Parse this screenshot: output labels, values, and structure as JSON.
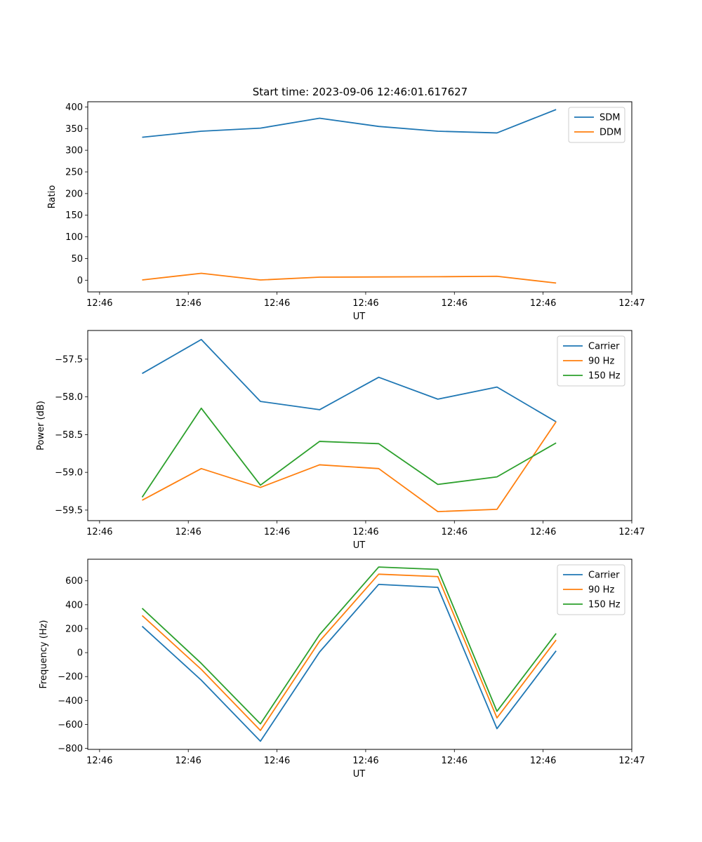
{
  "title": "Start time: 2023-09-06 12:46:01.617627",
  "chart_data": [
    {
      "type": "line",
      "xlabel": "UT",
      "ylabel": "Ratio",
      "x_index_range": [
        -0.2,
        9.0
      ],
      "x_ticks": [
        0,
        1.5,
        3,
        4.5,
        6,
        7.5,
        9
      ],
      "x_tick_labels": [
        "12:46",
        "12:46",
        "12:46",
        "12:46",
        "12:46",
        "12:46",
        "12:47"
      ],
      "ylim": [
        -27,
        412
      ],
      "y_ticks": [
        0,
        50,
        100,
        150,
        200,
        250,
        300,
        350,
        400
      ],
      "y_tick_labels": [
        "0",
        "50",
        "100",
        "150",
        "200",
        "250",
        "300",
        "350",
        "400"
      ],
      "legend_position": "upper-right",
      "series": [
        {
          "name": "SDM",
          "color": "#1f77b4",
          "x": [
            0.72,
            1.72,
            2.72,
            3.72,
            4.72,
            5.72,
            6.72,
            7.72
          ],
          "values": [
            330,
            344,
            351,
            374,
            355,
            344,
            340,
            394
          ]
        },
        {
          "name": "DDM",
          "color": "#ff7f0e",
          "x": [
            0.72,
            1.72,
            2.72,
            3.72,
            4.72,
            5.72,
            6.72,
            7.72
          ],
          "values": [
            0.5,
            16,
            0.5,
            7,
            7.5,
            8,
            9,
            -6.5
          ]
        }
      ]
    },
    {
      "type": "line",
      "xlabel": "UT",
      "ylabel": "Power (dB)",
      "x_index_range": [
        -0.2,
        9.0
      ],
      "x_ticks": [
        0,
        1.5,
        3,
        4.5,
        6,
        7.5,
        9
      ],
      "x_tick_labels": [
        "12:46",
        "12:46",
        "12:46",
        "12:46",
        "12:46",
        "12:46",
        "12:47"
      ],
      "ylim": [
        -59.64,
        -57.12
      ],
      "y_ticks": [
        -57.5,
        -58.0,
        -58.5,
        -59.0,
        -59.5
      ],
      "y_tick_labels": [
        "−57.5",
        "−58.0",
        "−58.5",
        "−59.0",
        "−59.5"
      ],
      "legend_position": "upper-right",
      "series": [
        {
          "name": "Carrier",
          "color": "#1f77b4",
          "x": [
            0.72,
            1.72,
            2.72,
            3.72,
            4.72,
            5.72,
            6.72,
            7.72
          ],
          "values": [
            -57.69,
            -57.24,
            -58.06,
            -58.17,
            -57.74,
            -58.03,
            -57.87,
            -58.33
          ]
        },
        {
          "name": "90 Hz",
          "color": "#ff7f0e",
          "x": [
            0.72,
            1.72,
            2.72,
            3.72,
            4.72,
            5.72,
            6.72,
            7.72
          ],
          "values": [
            -59.37,
            -58.95,
            -59.2,
            -58.9,
            -58.95,
            -59.52,
            -59.49,
            -58.33
          ]
        },
        {
          "name": "150 Hz",
          "color": "#2ca02c",
          "x": [
            0.72,
            1.72,
            2.72,
            3.72,
            4.72,
            5.72,
            6.72,
            7.72
          ],
          "values": [
            -59.33,
            -58.15,
            -59.17,
            -58.59,
            -58.62,
            -59.16,
            -59.06,
            -58.61
          ]
        }
      ]
    },
    {
      "type": "line",
      "xlabel": "UT",
      "ylabel": "Frequency (Hz)",
      "x_index_range": [
        -0.2,
        9.0
      ],
      "x_ticks": [
        0,
        1.5,
        3,
        4.5,
        6,
        7.5,
        9
      ],
      "x_tick_labels": [
        "12:46",
        "12:46",
        "12:46",
        "12:46",
        "12:46",
        "12:46",
        "12:47"
      ],
      "ylim": [
        -808,
        780
      ],
      "y_ticks": [
        600,
        400,
        200,
        0,
        -200,
        -400,
        -600,
        -800
      ],
      "y_tick_labels": [
        "600",
        "400",
        "200",
        "0",
        "−200",
        "−400",
        "−600",
        "−800"
      ],
      "legend_position": "upper-right",
      "series": [
        {
          "name": "Carrier",
          "color": "#1f77b4",
          "x": [
            0.72,
            1.72,
            2.72,
            3.72,
            4.72,
            5.72,
            6.72,
            7.72
          ],
          "values": [
            220,
            -230,
            -740,
            5,
            570,
            545,
            -635,
            15
          ]
        },
        {
          "name": "90 Hz",
          "color": "#ff7f0e",
          "x": [
            0.72,
            1.72,
            2.72,
            3.72,
            4.72,
            5.72,
            6.72,
            7.72
          ],
          "values": [
            310,
            -140,
            -650,
            95,
            655,
            635,
            -545,
            105
          ]
        },
        {
          "name": "150 Hz",
          "color": "#2ca02c",
          "x": [
            0.72,
            1.72,
            2.72,
            3.72,
            4.72,
            5.72,
            6.72,
            7.72
          ],
          "values": [
            370,
            -90,
            -595,
            150,
            715,
            695,
            -490,
            160
          ]
        }
      ]
    }
  ]
}
